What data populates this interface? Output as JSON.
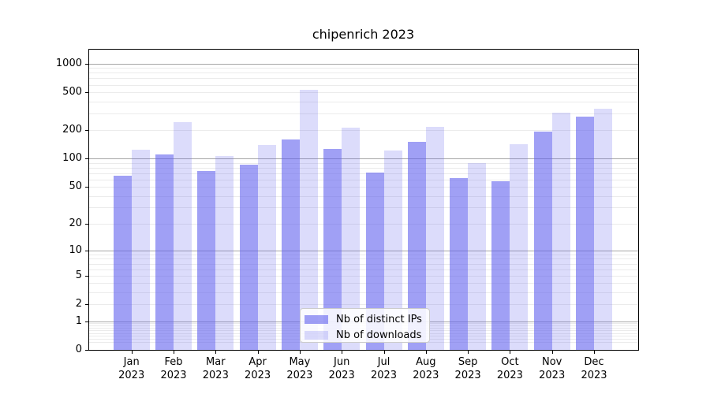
{
  "chart_data": {
    "type": "bar",
    "title": "chipenrich 2023",
    "categories": [
      {
        "month": "Jan",
        "year": "2023"
      },
      {
        "month": "Feb",
        "year": "2023"
      },
      {
        "month": "Mar",
        "year": "2023"
      },
      {
        "month": "Apr",
        "year": "2023"
      },
      {
        "month": "May",
        "year": "2023"
      },
      {
        "month": "Jun",
        "year": "2023"
      },
      {
        "month": "Jul",
        "year": "2023"
      },
      {
        "month": "Aug",
        "year": "2023"
      },
      {
        "month": "Sep",
        "year": "2023"
      },
      {
        "month": "Oct",
        "year": "2023"
      },
      {
        "month": "Nov",
        "year": "2023"
      },
      {
        "month": "Dec",
        "year": "2023"
      }
    ],
    "series": [
      {
        "name": "Nb of distinct IPs",
        "color_key": "ips",
        "values": [
          66,
          111,
          74,
          86,
          158,
          127,
          71,
          150,
          62,
          58,
          192,
          276
        ]
      },
      {
        "name": "Nb of downloads",
        "color_key": "downloads",
        "values": [
          124,
          242,
          106,
          139,
          527,
          213,
          122,
          216,
          90,
          141,
          303,
          337
        ]
      }
    ],
    "xlabel": "",
    "ylabel": "",
    "yscale": "log10(1+x)",
    "yticks": [
      0,
      1,
      2,
      5,
      10,
      20,
      50,
      100,
      200,
      500,
      1000
    ],
    "ylim": [
      0,
      1430
    ],
    "grid": true,
    "legend_position": "lower center",
    "colors": {
      "ips": "rgba(97,97,238,0.60)",
      "downloads": "rgba(97,97,238,0.22)",
      "ips_hex_on_white": "#a2a2f4",
      "downloads_hex_on_white": "#dcdcfb",
      "grid_major": "#a6a6a6",
      "grid_minor": "#ebebeb"
    }
  }
}
